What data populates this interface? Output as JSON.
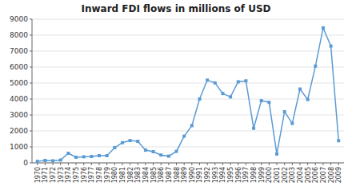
{
  "chart_data": {
    "type": "line",
    "title": "Inward FDI flows in millions of USD",
    "x": [
      1970,
      1971,
      1972,
      1973,
      1974,
      1975,
      1976,
      1977,
      1978,
      1979,
      1980,
      1981,
      1982,
      1983,
      1984,
      1985,
      1986,
      1987,
      1988,
      1989,
      1990,
      1991,
      1992,
      1993,
      1994,
      1995,
      1996,
      1997,
      1998,
      1999,
      2000,
      2001,
      2002,
      2003,
      2004,
      2005,
      2006,
      2007,
      2008,
      2009
    ],
    "values": [
      94,
      150,
      130,
      175,
      600,
      350,
      380,
      400,
      450,
      450,
      950,
      1265,
      1397,
      1350,
      800,
      700,
      490,
      420,
      720,
      1668,
      2332,
      3998,
      5183,
      5006,
      4342,
      4132,
      5078,
      5136,
      2163,
      3895,
      3788,
      554,
      3203,
      2473,
      4624,
      3965,
      6060,
      8453,
      7318,
      1387
    ],
    "color": "#5b9bd5",
    "marker": "square",
    "xlim": [
      1969.3,
      2009.7
    ],
    "xticks": [
      1970,
      1971,
      1972,
      1973,
      1974,
      1975,
      1976,
      1977,
      1978,
      1979,
      1980,
      1981,
      1982,
      1983,
      1984,
      1985,
      1986,
      1987,
      1988,
      1989,
      1990,
      1991,
      1992,
      1993,
      1994,
      1995,
      1996,
      1997,
      1998,
      1999,
      2000,
      2001,
      2002,
      2003,
      2004,
      2005,
      2006,
      2007,
      2008,
      2009
    ],
    "ylim": [
      0,
      9000
    ],
    "yticks": [
      0,
      1000,
      2000,
      3000,
      4000,
      5000,
      6000,
      7000,
      8000,
      9000
    ],
    "grid": true
  }
}
